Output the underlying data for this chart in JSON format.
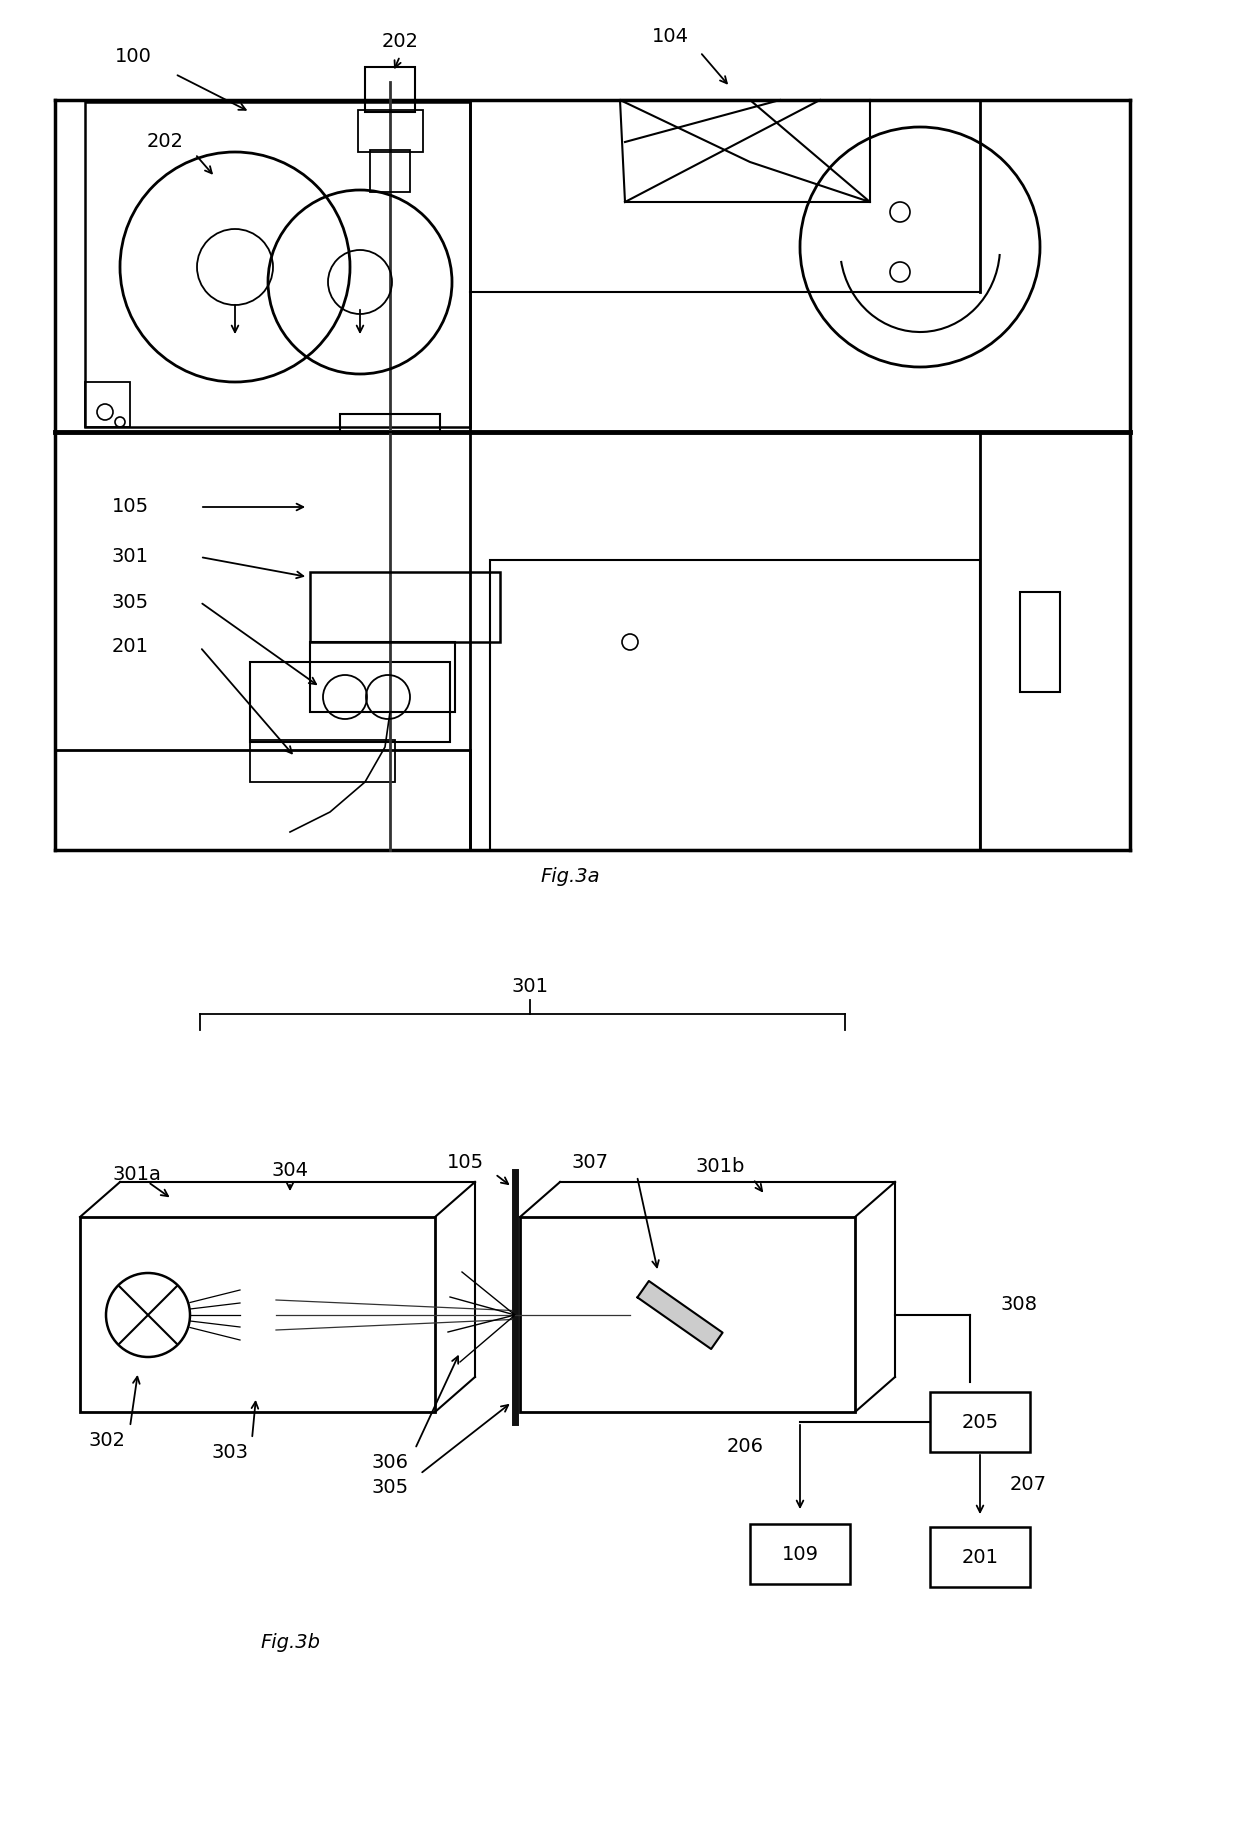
{
  "bg_color": "#ffffff",
  "line_color": "#000000",
  "fig_width": 12.4,
  "fig_height": 18.42,
  "fig3a_label": "Fig.3a",
  "fig3b_label": "Fig.3b"
}
